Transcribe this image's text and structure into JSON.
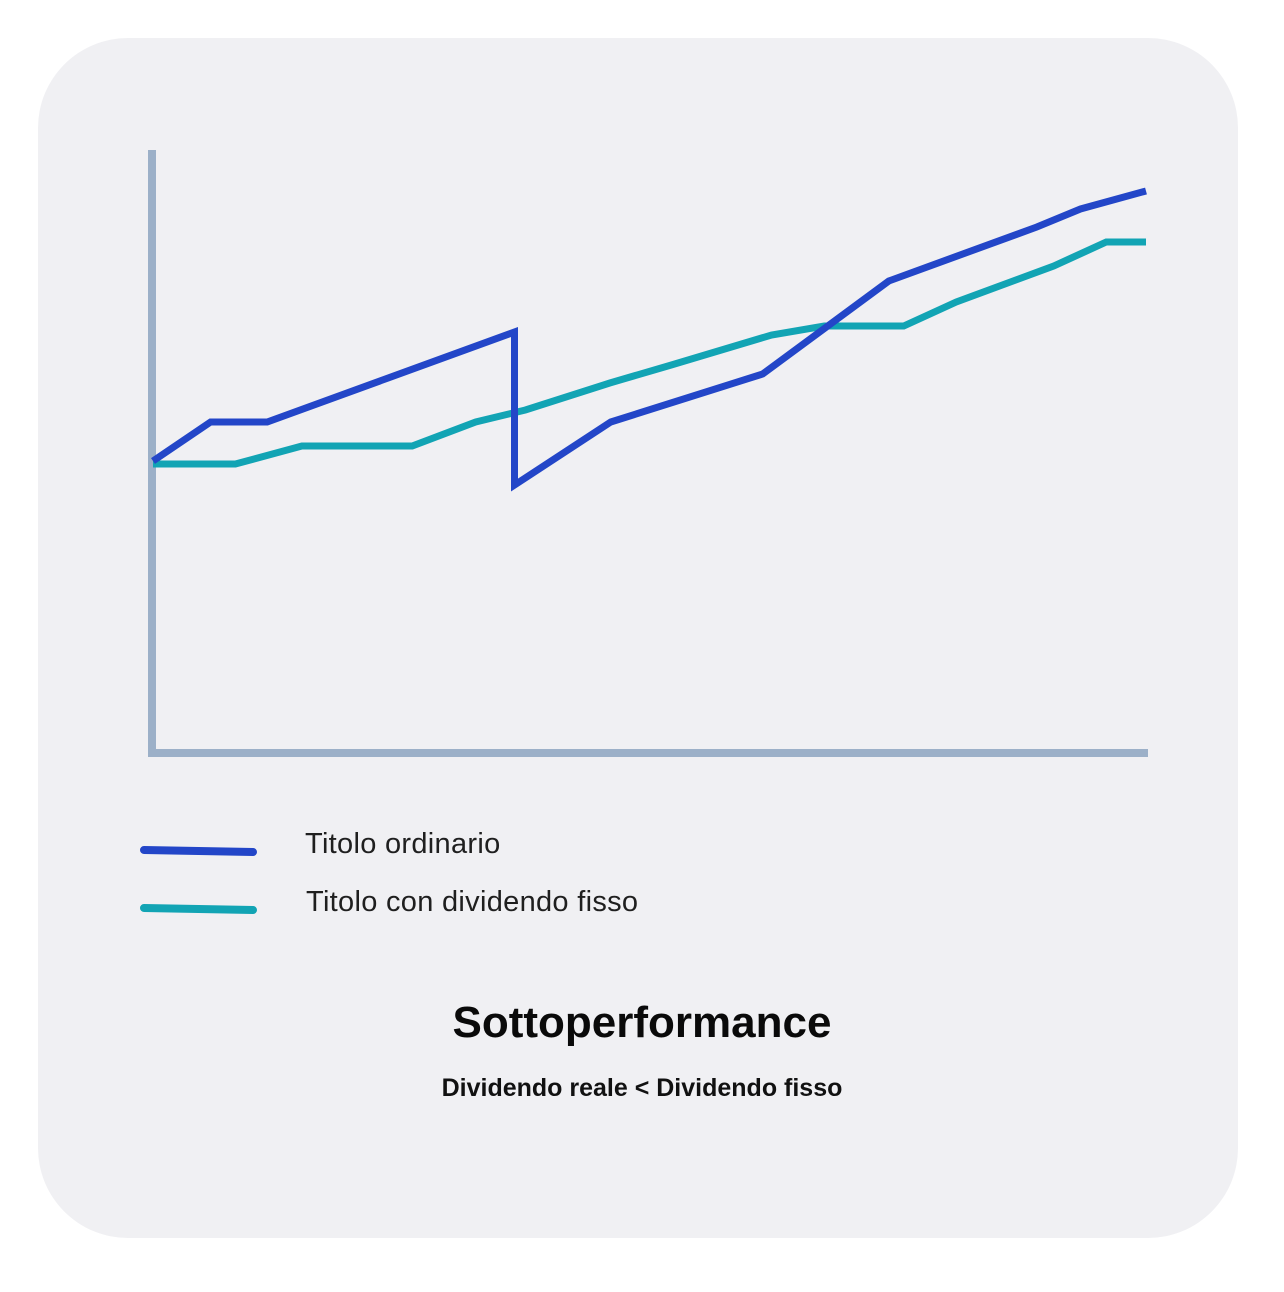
{
  "chart_data": {
    "type": "line",
    "title": "Sottoperformance",
    "subtitle": "Dividendo reale < Dividendo fisso",
    "xlabel": "",
    "ylabel": "",
    "xlim": [
      0,
      100
    ],
    "ylim": [
      0,
      100
    ],
    "grid": false,
    "legend": "bottom-left",
    "series": [
      {
        "name": "Titolo ordinario",
        "color": "#2346c8",
        "x": [
          0,
          5.8,
          11.5,
          36.4,
          36.4,
          46.1,
          61.4,
          74.1,
          89.0,
          93.4,
          100
        ],
        "y": [
          48.5,
          55,
          55,
          70,
          44.5,
          55,
          63,
          78.5,
          87.5,
          90.5,
          93.5
        ]
      },
      {
        "name": "Titolo con dividendo fisso",
        "color": "#12a4b4",
        "x": [
          0,
          8.3,
          15.0,
          26.1,
          32.5,
          37.5,
          46.0,
          52.2,
          62.3,
          67.6,
          75.6,
          80.9,
          90.7,
          96.0,
          100
        ],
        "y": [
          48,
          48,
          51,
          51,
          55,
          57,
          61.5,
          64.5,
          69.5,
          71,
          71,
          75,
          81,
          85,
          85
        ]
      }
    ]
  },
  "colors": {
    "card_background": "#f0f0f3",
    "axis": "#9cb0c8"
  }
}
